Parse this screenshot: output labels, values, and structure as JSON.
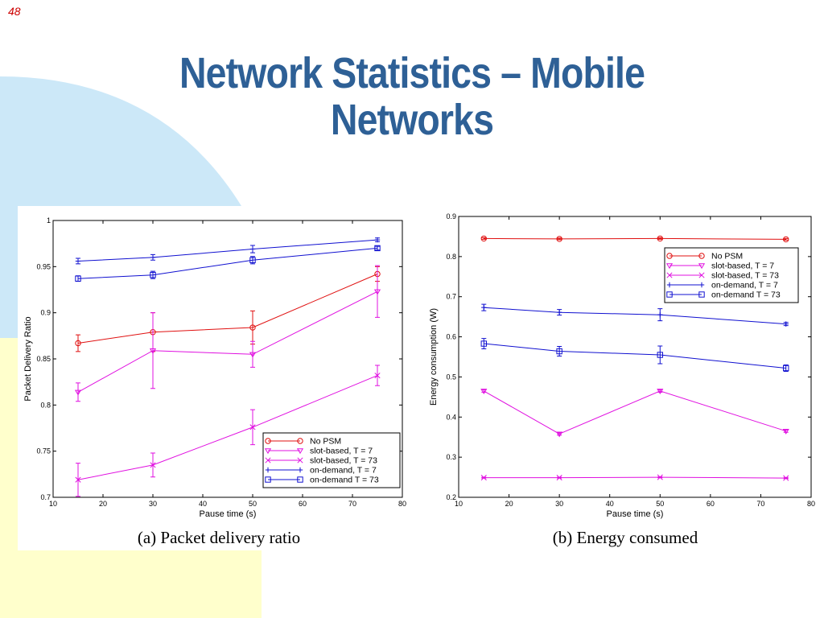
{
  "slide": {
    "number": "48",
    "title_line1": "Network Statistics – Mobile",
    "title_line2": "Networks"
  },
  "colors": {
    "title": "#2e6096",
    "slide_number": "#cc0000",
    "decoration_blue": "#cce8f8",
    "decoration_yellow": "#ffffcc"
  },
  "captions": {
    "a": "(a) Packet delivery ratio",
    "b": "(b) Energy consumed"
  },
  "chart_data": [
    {
      "type": "line",
      "title": "",
      "xlabel": "Pause time (s)",
      "ylabel": "Packet Delivery Ratio",
      "xlim": [
        10,
        80
      ],
      "ylim": [
        0.7,
        1
      ],
      "xticks": [
        10,
        20,
        30,
        40,
        50,
        60,
        70,
        80
      ],
      "yticks": [
        0.7,
        0.75,
        0.8,
        0.85,
        0.9,
        0.95,
        1
      ],
      "ytick_labels": [
        "0.7",
        "0.75",
        "0.8",
        "0.85",
        "0.9",
        "0.95",
        "1"
      ],
      "grid": false,
      "legend_position": "bottom-right",
      "x": [
        15,
        30,
        50,
        75
      ],
      "series": [
        {
          "name": "No PSM",
          "color": "#e01010",
          "marker": "circle",
          "values": [
            0.867,
            0.879,
            0.884,
            0.942
          ],
          "errors": [
            0.009,
            0.021,
            0.018,
            0.008
          ]
        },
        {
          "name": "slot-based, T = 7",
          "color": "#e010e0",
          "marker": "triangle-down",
          "values": [
            0.814,
            0.859,
            0.855,
            0.923
          ],
          "errors": [
            0.01,
            0.041,
            0.014,
            0.028
          ]
        },
        {
          "name": "slot-based, T = 73",
          "color": "#e010e0",
          "marker": "x",
          "values": [
            0.719,
            0.735,
            0.776,
            0.832
          ],
          "errors": [
            0.018,
            0.013,
            0.019,
            0.011
          ]
        },
        {
          "name": "on-demand, T = 7",
          "color": "#1010d0",
          "marker": "plus",
          "values": [
            0.956,
            0.96,
            0.969,
            0.979
          ],
          "errors": [
            0.003,
            0.003,
            0.004,
            0.002
          ]
        },
        {
          "name": "on-demand T = 73",
          "color": "#1010d0",
          "marker": "square",
          "values": [
            0.937,
            0.941,
            0.957,
            0.97
          ],
          "errors": [
            0.003,
            0.004,
            0.004,
            0.002
          ]
        }
      ]
    },
    {
      "type": "line",
      "title": "",
      "xlabel": "Pause time (s)",
      "ylabel": "Energy consumption (W)",
      "xlim": [
        10,
        80
      ],
      "ylim": [
        0.2,
        0.9
      ],
      "xticks": [
        10,
        20,
        30,
        40,
        50,
        60,
        70,
        80
      ],
      "yticks": [
        0.2,
        0.3,
        0.4,
        0.5,
        0.6,
        0.7,
        0.8,
        0.9
      ],
      "ytick_labels": [
        "0.2",
        "0.3",
        "0.4",
        "0.5",
        "0.6",
        "0.7",
        "0.8",
        "0.9"
      ],
      "grid": false,
      "legend_position": "top-right",
      "x": [
        15,
        30,
        50,
        75
      ],
      "series": [
        {
          "name": "No PSM",
          "color": "#e01010",
          "marker": "circle",
          "values": [
            0.845,
            0.844,
            0.845,
            0.843
          ],
          "errors": [
            0.002,
            0.002,
            0.002,
            0.002
          ]
        },
        {
          "name": "slot-based, T = 7",
          "color": "#e010e0",
          "marker": "triangle-down",
          "values": [
            0.465,
            0.358,
            0.465,
            0.365
          ],
          "errors": [
            0.003,
            0.003,
            0.003,
            0.003
          ]
        },
        {
          "name": "slot-based, T = 73",
          "color": "#e010e0",
          "marker": "x",
          "values": [
            0.249,
            0.249,
            0.25,
            0.248
          ],
          "errors": [
            0.001,
            0.001,
            0.001,
            0.001
          ]
        },
        {
          "name": "on-demand, T = 7",
          "color": "#1010d0",
          "marker": "plus",
          "values": [
            0.673,
            0.661,
            0.655,
            0.632
          ],
          "errors": [
            0.008,
            0.007,
            0.015,
            0.004
          ]
        },
        {
          "name": "on-demand T = 73",
          "color": "#1010d0",
          "marker": "square",
          "values": [
            0.583,
            0.564,
            0.555,
            0.522
          ],
          "errors": [
            0.013,
            0.012,
            0.022,
            0.008
          ]
        }
      ]
    }
  ]
}
